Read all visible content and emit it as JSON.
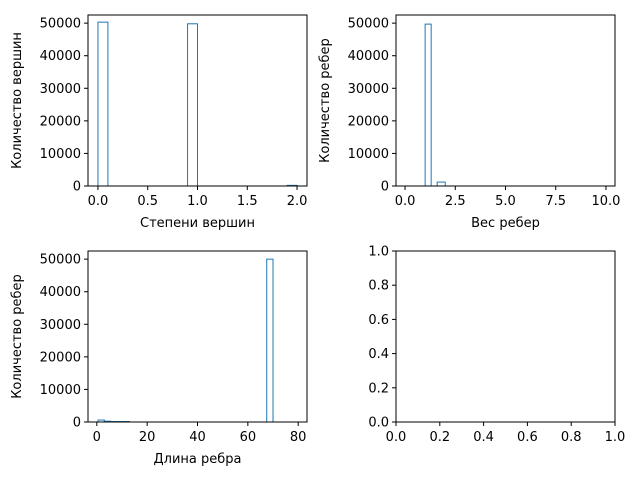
{
  "colors": {
    "bar_edge": "#1f77b4",
    "axes": "#000000",
    "background": "#ffffff"
  },
  "chart_data": [
    {
      "type": "bar",
      "subtype": "histogram-step",
      "xlabel": "Степени вершин",
      "ylabel": "Количество вершин",
      "xlim": [
        -0.1,
        2.1
      ],
      "ylim": [
        0,
        52500
      ],
      "xticks": [
        0.0,
        0.5,
        1.0,
        1.5,
        2.0
      ],
      "xtick_labels": [
        "0.0",
        "0.5",
        "1.0",
        "1.5",
        "2.0"
      ],
      "yticks": [
        0,
        10000,
        20000,
        30000,
        40000,
        50000
      ],
      "ytick_labels": [
        "0",
        "10000",
        "20000",
        "30000",
        "40000",
        "50000"
      ],
      "bins": [
        {
          "x0": 0.0,
          "x1": 0.1,
          "value": 50300
        },
        {
          "x0": 0.9,
          "x1": 1.0,
          "value": 49800
        },
        {
          "x0": 1.9,
          "x1": 2.0,
          "value": 200
        }
      ]
    },
    {
      "type": "bar",
      "subtype": "histogram-step",
      "xlabel": "Вес ребер",
      "ylabel": "Количество ребер",
      "xlim": [
        -0.45,
        10.45
      ],
      "ylim": [
        0,
        52500
      ],
      "xticks": [
        0.0,
        2.5,
        5.0,
        7.5,
        10.0
      ],
      "xtick_labels": [
        "0.0",
        "2.5",
        "5.0",
        "7.5",
        "10.0"
      ],
      "yticks": [
        0,
        10000,
        20000,
        30000,
        40000,
        50000
      ],
      "ytick_labels": [
        "0",
        "10000",
        "20000",
        "30000",
        "40000",
        "50000"
      ],
      "bins": [
        {
          "x0": 1.0,
          "x1": 1.3,
          "value": 49700
        },
        {
          "x0": 1.6,
          "x1": 2.0,
          "value": 1200
        },
        {
          "x0": 2.0,
          "x1": 10.0,
          "value": 0
        }
      ]
    },
    {
      "type": "bar",
      "subtype": "histogram-step",
      "xlabel": "Длина ребра",
      "ylabel": "Количество ребер",
      "xlim": [
        -3.5,
        83.5
      ],
      "ylim": [
        0,
        52500
      ],
      "xticks": [
        0,
        20,
        40,
        60,
        80
      ],
      "xtick_labels": [
        "0",
        "20",
        "40",
        "60",
        "80"
      ],
      "yticks": [
        0,
        10000,
        20000,
        30000,
        40000,
        50000
      ],
      "ytick_labels": [
        "0",
        "10000",
        "20000",
        "30000",
        "40000",
        "50000"
      ],
      "bins": [
        {
          "x0": 0.5,
          "x1": 3.0,
          "value": 600
        },
        {
          "x0": 3.0,
          "x1": 5.5,
          "value": 250
        },
        {
          "x0": 5.5,
          "x1": 8.0,
          "value": 150
        },
        {
          "x0": 8.0,
          "x1": 10.5,
          "value": 150
        },
        {
          "x0": 10.5,
          "x1": 13.0,
          "value": 150
        },
        {
          "x0": 13.0,
          "x1": 67.5,
          "value": 0
        },
        {
          "x0": 67.5,
          "x1": 70.0,
          "value": 50000
        }
      ]
    },
    {
      "type": "empty",
      "xlabel": "",
      "ylabel": "",
      "xlim": [
        0.0,
        1.0
      ],
      "ylim": [
        0.0,
        1.0
      ],
      "xticks": [
        0.0,
        0.2,
        0.4,
        0.6,
        0.8,
        1.0
      ],
      "xtick_labels": [
        "0.0",
        "0.2",
        "0.4",
        "0.6",
        "0.8",
        "1.0"
      ],
      "yticks": [
        0.0,
        0.2,
        0.4,
        0.6,
        0.8,
        1.0
      ],
      "ytick_labels": [
        "0.0",
        "0.2",
        "0.4",
        "0.6",
        "0.8",
        "1.0"
      ],
      "bins": []
    }
  ]
}
